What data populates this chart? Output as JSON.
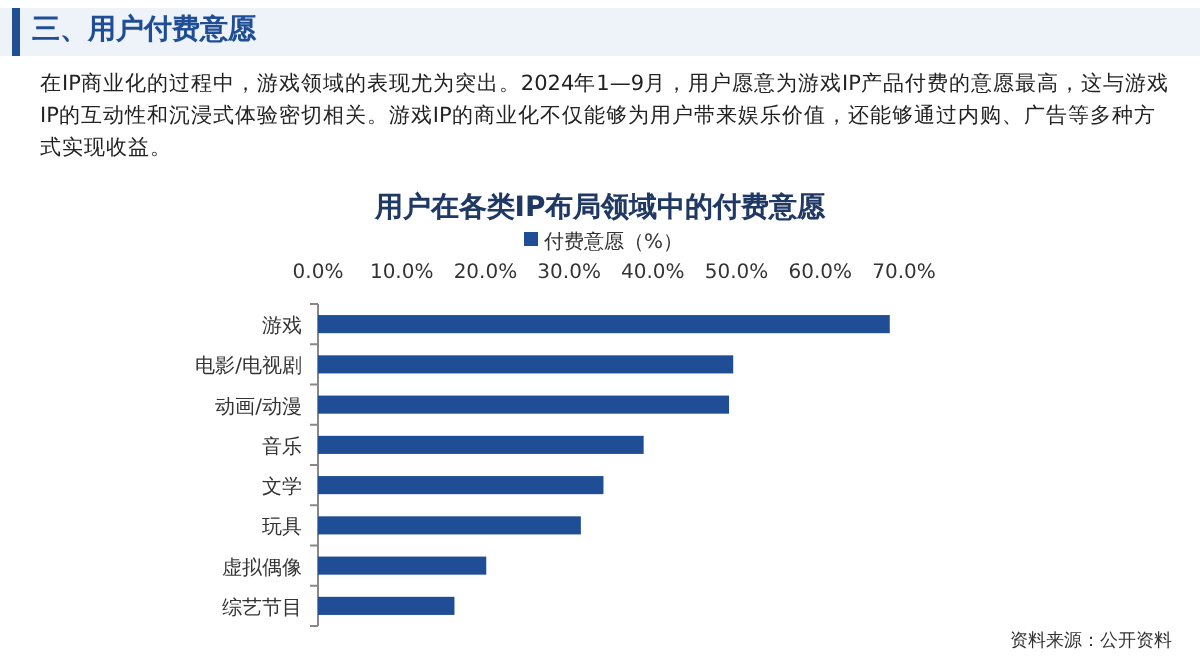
{
  "chart_data": {
    "type": "bar",
    "orientation": "horizontal",
    "title": "用户在各类IP布局领域中的付费意愿",
    "annotations": [
      "三、用户付费意愿",
      "在IP商业化的过程中，游戏领域的表现尤为突出。2024年1—9月，用户愿意为游戏IP产品付费的意愿最高，这与游戏IP的互动性和沉浸式体验密切相关。游戏IP的商业化不仅能够为用户带来娱乐价值，还能够通过内购、广告等多种方式实现收益。",
      "资料来源：公开资料"
    ],
    "categories": [
      "游戏",
      "电影/电视剧",
      "动画/动漫",
      "音乐",
      "文学",
      "玩具",
      "虚拟偶像",
      "综艺节目"
    ],
    "series": [
      {
        "name": "付费意愿（%）",
        "color": "#1f4e96",
        "values": [
          68.3,
          49.6,
          49.1,
          38.9,
          34.1,
          31.4,
          20.1,
          16.3
        ]
      }
    ],
    "xlim": [
      0,
      70
    ],
    "xticks": [
      {
        "value": 0,
        "label": "0.0%"
      },
      {
        "value": 10,
        "label": "10.0%"
      },
      {
        "value": 20,
        "label": "20.0%"
      },
      {
        "value": 30,
        "label": "30.0%"
      },
      {
        "value": 40,
        "label": "40.0%"
      },
      {
        "value": 50,
        "label": "50.0%"
      },
      {
        "value": 60,
        "label": "60.0%"
      },
      {
        "value": 70,
        "label": "70.0%"
      }
    ],
    "legend": "top",
    "grid": false
  }
}
